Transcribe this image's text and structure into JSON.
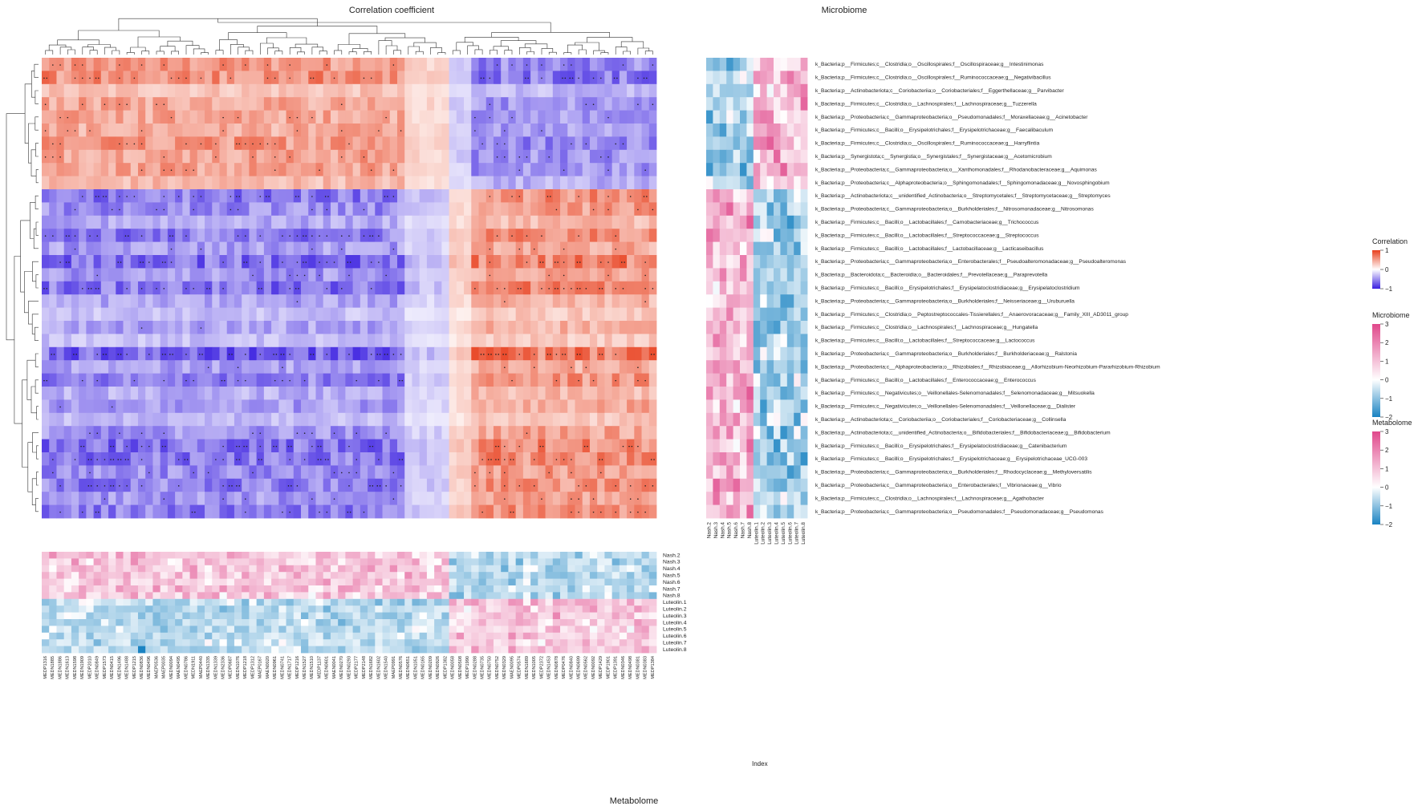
{
  "chart_data": {
    "type": "heatmap",
    "title": "Correlation coefficient",
    "panels": {
      "microbiome_title": "Microbiome",
      "metabolome_title": "Metabolome",
      "index_label": "Index"
    },
    "rows": [
      "k_Bacteria;p__Firmicutes;c__Clostridia;o__Oscillospirales;f__Oscillospiraceae;g__Intestinimonas",
      "k_Bacteria;p__Firmicutes;c__Clostridia;o__Oscillospirales;f__Ruminococcaceae;g__Negativibacillus",
      "k_Bacteria;p__Actinobacteriota;c__Coriobacteriia;o__Coriobacteriales;f__Eggerthellaceae;g__Parvibacter",
      "k_Bacteria;p__Firmicutes;c__Clostridia;o__Lachnospirales;f__Lachnospiraceae;g__Tuzzerella",
      "k_Bacteria;p__Proteobacteria;c__Gammaproteobacteria;o__Pseudomonadales;f__Moraxellaceae;g__Acinetobacter",
      "k_Bacteria;p__Firmicutes;c__Bacilli;o__Erysipelotrichales;f__Erysipelotrichaceae;g__Faecalibaculum",
      "k_Bacteria;p__Firmicutes;c__Clostridia;o__Oscillospirales;f__Ruminococcaceae;g__Harryflintia",
      "k_Bacteria;p__Synergistota;c__Synergistia;o__Synergistales;f__Synergistaceae;g__Acetomicrobium",
      "k_Bacteria;p__Proteobacteria;c__Gammaproteobacteria;o__Xanthomonadales;f__Rhodanobacteraceae;g__Aquimonas",
      "k_Bacteria;p__Proteobacteria;c__Alphaproteobacteria;o__Sphingomonadales;f__Sphingomonadaceae;g__Novosphingobium",
      "k_Bacteria;p__Actinobacteriota;c__unidentified_Actinobacteria;o__Streptomycetales;f__Streptomycetaceae;g__Streptomyces",
      "k_Bacteria;p__Proteobacteria;c__Gammaproteobacteria;o__Burkholderiales;f__Nitrosomonadaceae;g__Nitrosomonas",
      "k_Bacteria;p__Firmicutes;c__Bacilli;o__Lactobacillales;f__Carnobacteriaceae;g__Trichococcus",
      "k_Bacteria;p__Firmicutes;c__Bacilli;o__Lactobacillales;f__Streptococcaceae;g__Streptococcus",
      "k_Bacteria;p__Firmicutes;c__Bacilli;o__Lactobacillales;f__Lactobacillaceae;g__Lacticaseibacillus",
      "k_Bacteria;p__Proteobacteria;c__Gammaproteobacteria;o__Enterobacterales;f__Pseudoalteromonadaceae;g__Pseudoalteromonas",
      "k_Bacteria;p__Bacteroidota;c__Bacteroidia;o__Bacteroidales;f__Prevotellaceae;g__Paraprevotella",
      "k_Bacteria;p__Firmicutes;c__Bacilli;o__Erysipelotrichales;f__Erysipelatoclostridiaceae;g__Erysipelatoclostridium",
      "k_Bacteria;p__Proteobacteria;c__Gammaproteobacteria;o__Burkholderiales;f__Neisseriaceae;g__Uruburuella",
      "k_Bacteria;p__Firmicutes;c__Clostridia;o__Peptostreptococcales-Tissierellales;f__Anaerovoracaceae;g__Family_XIII_AD3011_group",
      "k_Bacteria;p__Firmicutes;c__Clostridia;o__Lachnospirales;f__Lachnospiraceae;g__Hungatella",
      "k_Bacteria;p__Firmicutes;c__Bacilli;o__Lactobacillales;f__Streptococcaceae;g__Lactococcus",
      "k_Bacteria;p__Proteobacteria;c__Gammaproteobacteria;o__Burkholderiales;f__Burkholderiaceae;g__Ralstonia",
      "k_Bacteria;p__Proteobacteria;c__Alphaproteobacteria;o__Rhizobiales;f__Rhizobiaceae;g__Allorhizobium-Neorhizobium-Pararhizobium-Rhizobium",
      "k_Bacteria;p__Firmicutes;c__Bacilli;o__Lactobacillales;f__Enterococcaceae;g__Enterococcus",
      "k_Bacteria;p__Firmicutes;c__Negativicutes;o__Veillonellales-Selenomonadales;f__Selenomonadaceae;g__Mitsuokella",
      "k_Bacteria;p__Firmicutes;c__Negativicutes;o__Veillonellales-Selenomonadales;f__Veillonellaceae;g__Dialister",
      "k_Bacteria;p__Actinobacteriota;c__Coriobacteriia;o__Coriobacteriales;f__Coriobacteriaceae;g__Collinsella",
      "k_Bacteria;p__Actinobacteriota;c__unidentified_Actinobacteria;o__Bifidobacteriales;f__Bifidobacteriaceae;g__Bifidobacterium",
      "k_Bacteria;p__Firmicutes;c__Bacilli;o__Erysipelotrichales;f__Erysipelatoclostridiaceae;g__Catenibacterium",
      "k_Bacteria;p__Firmicutes;c__Bacilli;o__Erysipelotrichales;f__Erysipelotrichaceae;g__Erysipelotrichaceae_UCG-003",
      "k_Bacteria;p__Proteobacteria;c__Gammaproteobacteria;o__Burkholderiales;f__Rhodocyclaceae;g__Methyloversatilis",
      "k_Bacteria;p__Proteobacteria;c__Gammaproteobacteria;o__Enterobacterales;f__Vibrionaceae;g__Vibrio",
      "k_Bacteria;p__Firmicutes;c__Clostridia;o__Lachnospirales;f__Lachnospiraceae;g__Agathobacter",
      "k_Bacteria;p__Proteobacteria;c__Gammaproteobacteria;o__Pseudomonadales;f__Pseudomonadaceae;g__Pseudomonas"
    ],
    "row_sign": [
      1,
      1,
      1,
      1,
      1,
      1,
      1,
      1,
      1,
      1,
      -1,
      -1,
      -1,
      -1,
      -1,
      -1,
      -1,
      -1,
      -1,
      -1,
      -1,
      -1,
      -1,
      -1,
      -1,
      -1,
      -1,
      -1,
      -1,
      -1,
      -1,
      -1,
      -1,
      -1,
      -1
    ],
    "column_split": 55,
    "columns": [
      "MEDP1316",
      "MEDN1885",
      "MEDN1886",
      "MEDN1613",
      "MEDN1598",
      "MEDN1909",
      "MEDP2010",
      "MEDN0849",
      "MEDP1573",
      "MEDN0415",
      "MEDN1496",
      "MEDN1488",
      "MEDP1215",
      "MEDN0836",
      "MEDN0496",
      "MAEP0536",
      "MAEP0035",
      "MEDN0094",
      "MAEN0495",
      "MEDN0786",
      "MEDN1911",
      "MAEP0440",
      "MEDN1335",
      "MEDN1339",
      "MEDN2336",
      "MEDP0687",
      "MEDN1076",
      "MEDP1218",
      "MEDP1312",
      "MAEP0167",
      "MAEN0020",
      "MEDN0961",
      "MEDN0741",
      "MEDN1717",
      "MEDP1216",
      "MEDN1527",
      "MEDN1510",
      "MEDP1137",
      "MEDN0601",
      "MAEN0041",
      "MEDN0270",
      "MEDN0293",
      "MEDP2177",
      "MEDP2148",
      "MEDN1682",
      "MEDN1602",
      "MEDN1540",
      "MAEP0991",
      "MEDN0576",
      "MEDN0651",
      "MEDN1051",
      "MEDN0165",
      "MEDN0209",
      "MEDN0926",
      "MEDP1382",
      "MEDN0058",
      "MEDN0508",
      "MEDP1990",
      "MEDN0288",
      "MEDN0735",
      "MEDN0750",
      "MEDN0752",
      "MEDN0329",
      "MAEN0095",
      "MEDP0574",
      "MEDN1689",
      "MEDN1005",
      "MEDP2372",
      "MEDN1453",
      "MEDN0878",
      "MEDP0476",
      "MEDN0840",
      "MEDN0699",
      "MEDN0562",
      "MEDN0092",
      "MEDP1429",
      "MEDP1901",
      "MEDP1391",
      "MEDN0346",
      "MEDN0498",
      "MEDN0381",
      "MEDN0383",
      "MEDP1384"
    ],
    "microbiome_samples": [
      "Nash.2",
      "Nash.3",
      "Nash.4",
      "Nash.5",
      "Nash.6",
      "Nash.7",
      "Nash.8",
      "Luteolin.1",
      "Luteolin.2",
      "Luteolin.3",
      "Luteolin.4",
      "Luteolin.5",
      "Luteolin.6",
      "Luteolin.7",
      "Luteolin.8"
    ],
    "metabolome_samples": [
      "Nash.2",
      "Nash.3",
      "Nash.4",
      "Nash.5",
      "Nash.6",
      "Nash.7",
      "Nash.8",
      "Luteolin.1",
      "Luteolin.2",
      "Luteolin.3",
      "Luteolin.4",
      "Luteolin.5",
      "Luteolin.6",
      "Luteolin.7",
      "Luteolin.8"
    ],
    "legends": [
      {
        "title": "Correlation",
        "ticks": [
          "1",
          "0",
          "−1"
        ],
        "range": [
          -1,
          1
        ],
        "colors": [
          "#3a1fe0",
          "#ffffff",
          "#e8401e"
        ]
      },
      {
        "title": "Microbiome",
        "ticks": [
          "3",
          "2",
          "1",
          "0",
          "−1",
          "−2"
        ],
        "range": [
          -2,
          3
        ],
        "colors": [
          "#1a83c2",
          "#ffffff",
          "#e0488b"
        ]
      },
      {
        "title": "Metabolome",
        "ticks": [
          "3",
          "2",
          "1",
          "0",
          "−1",
          "−2"
        ],
        "range": [
          -2,
          3
        ],
        "colors": [
          "#1a83c2",
          "#ffffff",
          "#e0488b"
        ]
      }
    ],
    "colors": {
      "positive": "#e8401e",
      "negative": "#3a1fe0",
      "high_abundance": "#e0488b",
      "low_abundance": "#1a83c2"
    }
  }
}
